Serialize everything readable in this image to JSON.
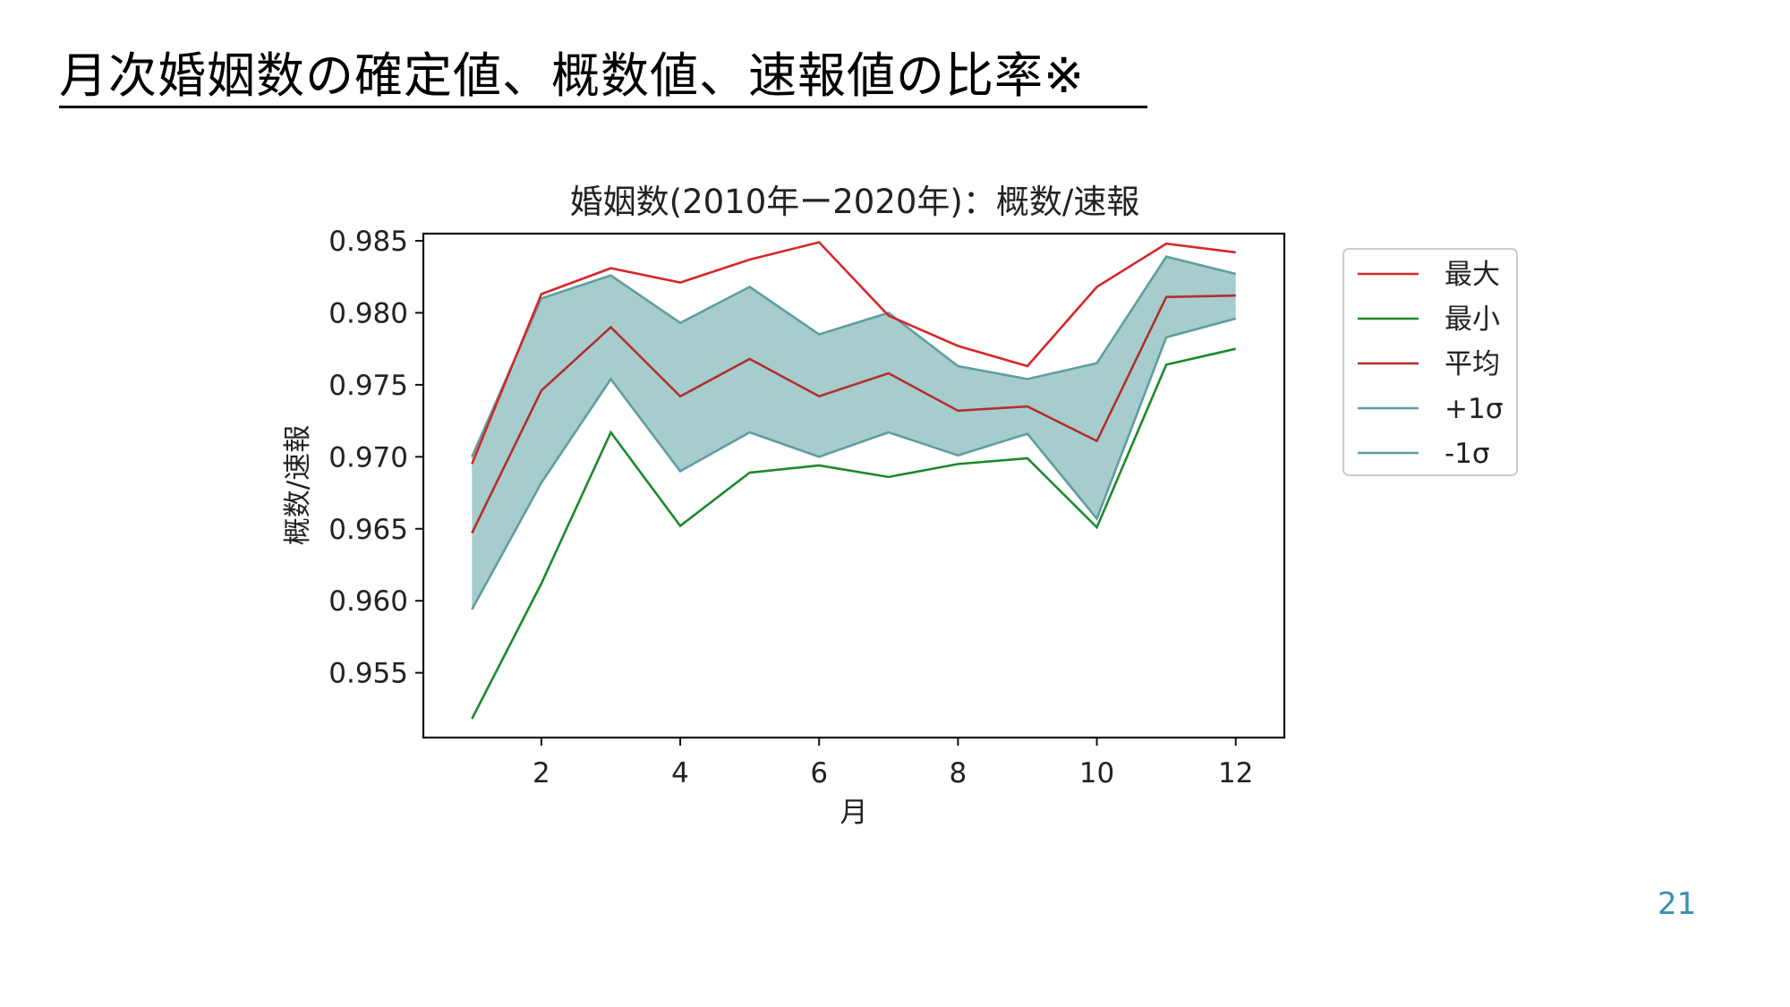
{
  "slide": {
    "title": "月次婚姻数の確定値、概数値、速報値の比率※",
    "page_number": "21"
  },
  "colors": {
    "max": "#d62728",
    "min": "#1a8a2a",
    "mean": "#b03030",
    "sigma": "#5f9ea0",
    "band_fill": "#a7cccd",
    "page_number": "#3a8fb0"
  },
  "chart_data": {
    "type": "line",
    "title": "婚姻数(2010年ー2020年)：概数/速報",
    "xlabel": "月",
    "ylabel": "概数/速報",
    "x": [
      1,
      2,
      3,
      4,
      5,
      6,
      7,
      8,
      9,
      10,
      11,
      12
    ],
    "xticks": [
      2,
      4,
      6,
      8,
      10,
      12
    ],
    "xlim": [
      0.3,
      12.7
    ],
    "yticks": [
      0.955,
      0.96,
      0.965,
      0.97,
      0.975,
      0.98,
      0.985
    ],
    "ytick_labels": [
      "0.955",
      "0.960",
      "0.965",
      "0.970",
      "0.975",
      "0.980",
      "0.985"
    ],
    "ylim": [
      0.9505,
      0.9855
    ],
    "grid": false,
    "legend_position": "outside-right-top",
    "series": [
      {
        "name": "最大",
        "color_key": "max",
        "values": [
          0.9695,
          0.9813,
          0.9831,
          0.9821,
          0.9837,
          0.9849,
          0.9798,
          0.9777,
          0.9763,
          0.9818,
          0.9848,
          0.9842
        ]
      },
      {
        "name": "最小",
        "color_key": "min",
        "values": [
          0.9518,
          0.9612,
          0.9717,
          0.9652,
          0.9689,
          0.9694,
          0.9686,
          0.9695,
          0.9699,
          0.9651,
          0.9764,
          0.9775
        ]
      },
      {
        "name": "平均",
        "color_key": "mean",
        "values": [
          0.9647,
          0.9746,
          0.979,
          0.9742,
          0.9768,
          0.9742,
          0.9758,
          0.9732,
          0.9735,
          0.9711,
          0.9811,
          0.9812
        ]
      },
      {
        "name": "+1σ",
        "color_key": "sigma",
        "values": [
          0.97,
          0.981,
          0.9826,
          0.9793,
          0.9818,
          0.9785,
          0.98,
          0.9763,
          0.9754,
          0.9765,
          0.9839,
          0.9827
        ]
      },
      {
        "name": "-1σ",
        "color_key": "sigma",
        "values": [
          0.9594,
          0.9682,
          0.9754,
          0.969,
          0.9717,
          0.97,
          0.9717,
          0.9701,
          0.9716,
          0.9657,
          0.9783,
          0.9796
        ]
      }
    ]
  }
}
